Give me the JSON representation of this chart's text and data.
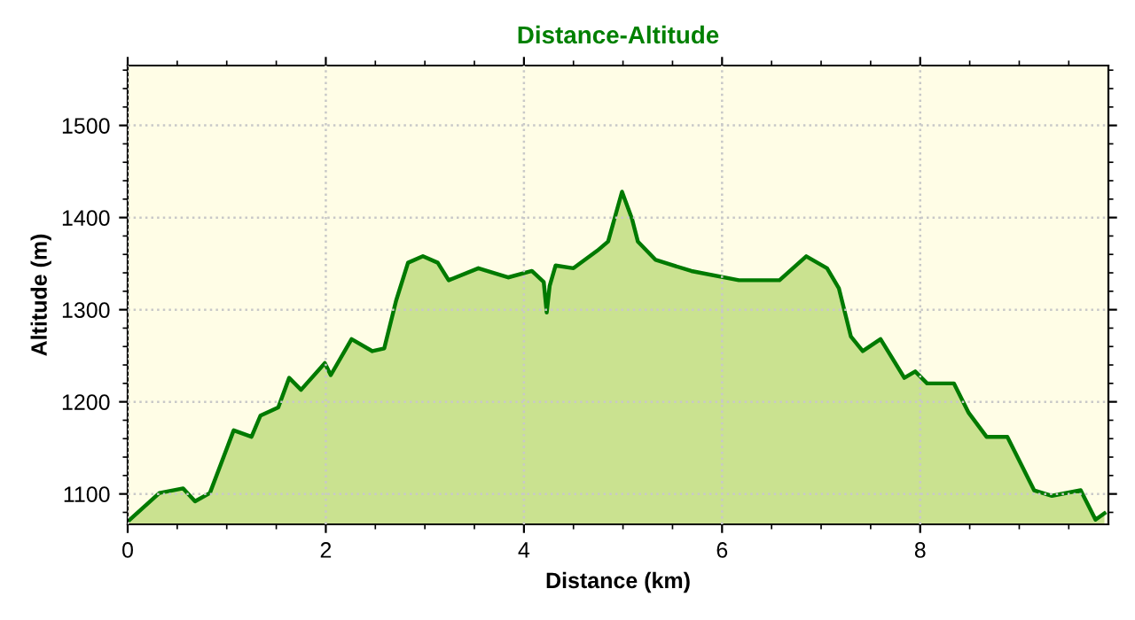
{
  "chart_data": {
    "type": "area",
    "title": "Distance-Altitude",
    "xlabel": "Distance (km)",
    "ylabel": "Altitude (m)",
    "xlim": [
      0,
      9.9
    ],
    "ylim": [
      1067,
      1565
    ],
    "xticks": [
      0,
      2,
      4,
      6,
      8
    ],
    "yticks": [
      1100,
      1200,
      1300,
      1400,
      1500
    ],
    "grid": true,
    "line_style": "solid",
    "series": [
      {
        "color": "#007a00",
        "x": [
          0.02,
          0.32,
          0.56,
          0.68,
          0.83,
          1.07,
          1.25,
          1.34,
          1.52,
          1.63,
          1.75,
          1.99,
          2.05,
          2.26,
          2.47,
          2.59,
          2.71,
          2.83,
          2.98,
          3.13,
          3.24,
          3.54,
          3.84,
          4.08,
          4.2,
          4.23,
          4.26,
          4.32,
          4.5,
          4.74,
          4.85,
          4.99,
          5.09,
          5.15,
          5.33,
          5.69,
          6.17,
          6.58,
          6.85,
          7.06,
          7.18,
          7.3,
          7.42,
          7.6,
          7.84,
          7.95,
          8.07,
          8.34,
          8.49,
          8.67,
          8.88,
          9.15,
          9.33,
          9.62,
          9.77,
          9.86
        ],
        "values": [
          1072,
          1101,
          1106,
          1092,
          1101,
          1169,
          1162,
          1185,
          1194,
          1226,
          1213,
          1242,
          1229,
          1268,
          1255,
          1258,
          1310,
          1351,
          1358,
          1351,
          1332,
          1345,
          1335,
          1342,
          1330,
          1297,
          1326,
          1348,
          1345,
          1364,
          1374,
          1428,
          1399,
          1374,
          1354,
          1342,
          1332,
          1332,
          1358,
          1345,
          1323,
          1271,
          1255,
          1268,
          1226,
          1233,
          1220,
          1220,
          1188,
          1162,
          1162,
          1104,
          1098,
          1104,
          1072,
          1079
        ]
      }
    ]
  }
}
